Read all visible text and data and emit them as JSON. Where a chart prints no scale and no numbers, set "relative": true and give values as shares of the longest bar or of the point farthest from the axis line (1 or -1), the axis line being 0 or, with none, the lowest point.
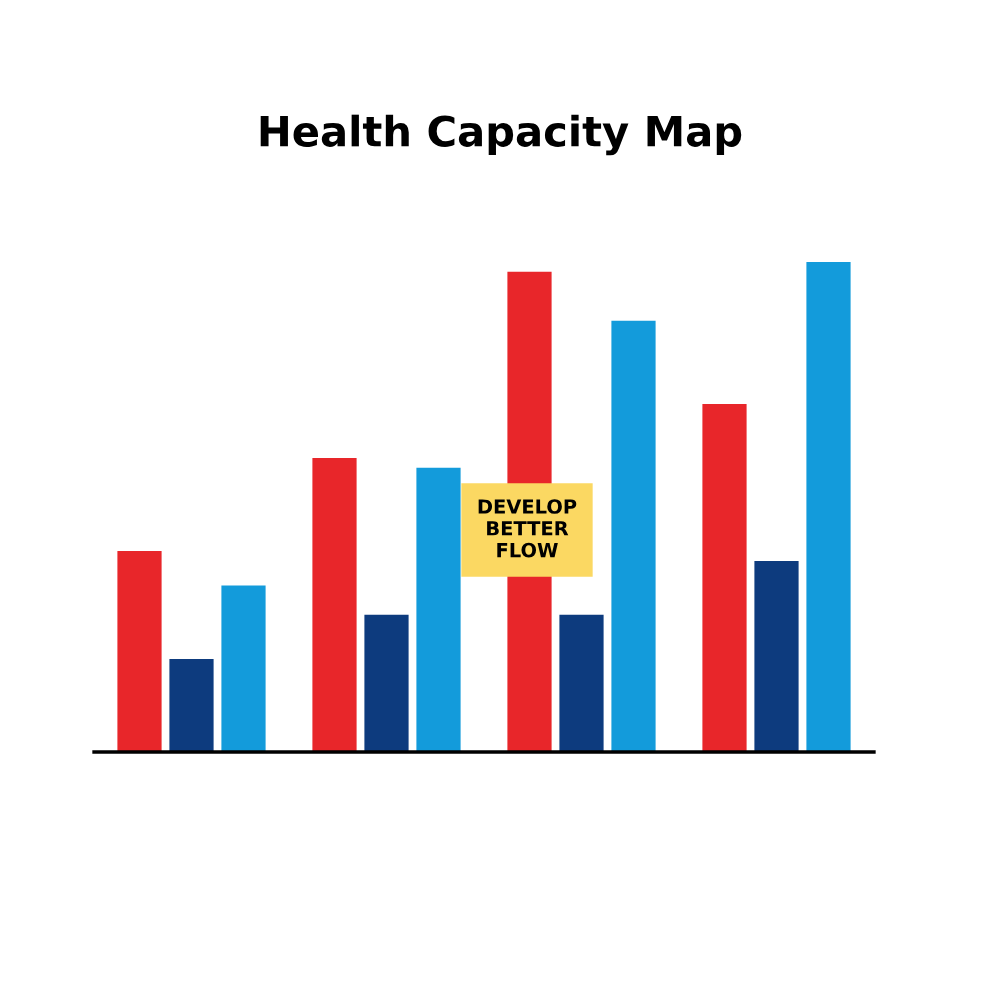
{
  "chart_data": {
    "type": "bar",
    "title": "Health Capacity Map",
    "relative": true,
    "categories": [
      null,
      null,
      null,
      null
    ],
    "series": [
      {
        "color": "#e8262a",
        "values": [
          0.41,
          0.6,
          0.98,
          0.71
        ]
      },
      {
        "color": "#0d3b7e",
        "values": [
          0.19,
          0.28,
          0.28,
          0.39
        ]
      },
      {
        "color": "#139bdb",
        "values": [
          0.34,
          0.58,
          0.88,
          1.0
        ]
      }
    ],
    "annotations": [
      "DEVELOP\nBETTER\nFLOW"
    ],
    "grid": false,
    "legend": false
  }
}
